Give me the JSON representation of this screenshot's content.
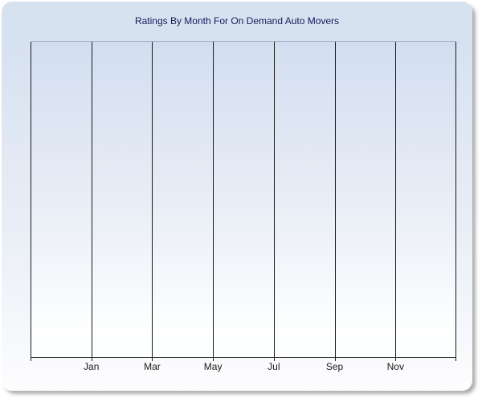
{
  "panel": {
    "title": "Ratings By Month For On Demand Auto Movers"
  },
  "x_axis": {
    "gridline_count": 8,
    "tick_labels": [
      "Jan",
      "Mar",
      "May",
      "Jul",
      "Sep",
      "Nov"
    ],
    "first_labeled_gridline_index": 1
  },
  "colors": {
    "panel_bg_top": "#d7e2f1",
    "panel_bg_bottom": "#fdfdfe",
    "plot_bg_top": "#d2def0",
    "plot_bg_bottom": "#feffff",
    "plot_top_border": "#a8b0c0",
    "gridline": "#1b1b1b",
    "axis": "#1b1b1b",
    "title_text": "#191955",
    "label_text": "#1a1a1a"
  },
  "chart_data": {
    "type": "line",
    "title": "Ratings By Month For On Demand Auto Movers",
    "x_tick_labels": [
      "Jan",
      "Mar",
      "May",
      "Jul",
      "Sep",
      "Nov"
    ],
    "series": [],
    "xlabel": "",
    "ylabel": "",
    "y_tick_labels": [],
    "grid": "vertical-only",
    "legend": "none",
    "note": "empty plot area - no data points rendered"
  }
}
